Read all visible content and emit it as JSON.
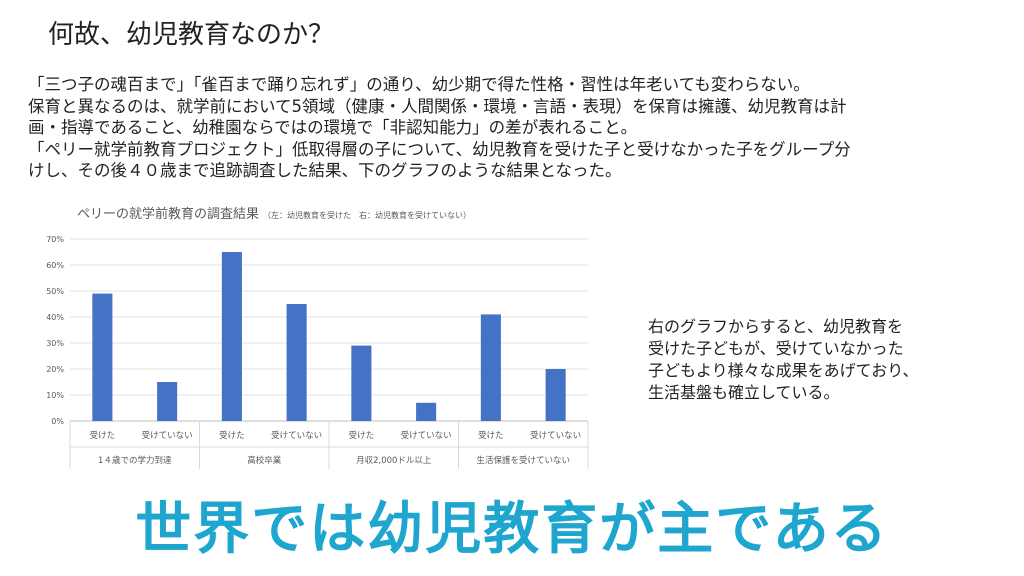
{
  "slide": {
    "title": "何故、幼児教育なのか？",
    "paragraph_lines": [
      "「三つ子の魂百まで」「雀百まで踊り忘れず」の通り、幼少期で得た性格・習性は年老いても変わらない。",
      "保育と異なるのは、就学前において5領域（健康・人間関係・環境・言語・表現）を保育は擁護、幼児教育は計",
      "画・指導であること、幼稚園ならではの環境で「非認知能力」の差が表れること。",
      "「ペリー就学前教育プロジェクト」低取得層の子について、幼児教育を受けた子と受けなかった子をグループ分",
      "けし、その後４０歳まで追跡調査した結果、下のグラフのような結果となった。"
    ],
    "side_lines": [
      "右のグラフからすると、幼児教育を",
      "受けた子どもが、受けていなかった",
      "子どもより様々な成果をあげており、",
      "生活基盤も確立している。"
    ],
    "slogan": "世界では幼児教育が主である",
    "accent_color": "#1ea6cf"
  },
  "chart_data": {
    "type": "bar",
    "title": "ペリーの就学前教育の調査結果",
    "subtitle": "（左：幼児教育を受けた　右：幼児教育を受けていない）",
    "xlabel": "",
    "ylabel": "",
    "ylim": [
      0,
      70
    ],
    "y_ticks": [
      "0%",
      "10%",
      "20%",
      "30%",
      "40%",
      "50%",
      "60%",
      "70%"
    ],
    "groups": [
      "1４歳での学力到達",
      "高校卒業",
      "月収2,000ドル以上",
      "生活保護を受けていない"
    ],
    "categories": [
      "受けた",
      "受けていない",
      "受けた",
      "受けていない",
      "受けた",
      "受けていない",
      "受けた",
      "受けていない"
    ],
    "values": [
      49,
      15,
      65,
      45,
      29,
      7,
      41,
      20
    ],
    "bar_color": "#4472c4",
    "grid": true,
    "legend": "none"
  }
}
